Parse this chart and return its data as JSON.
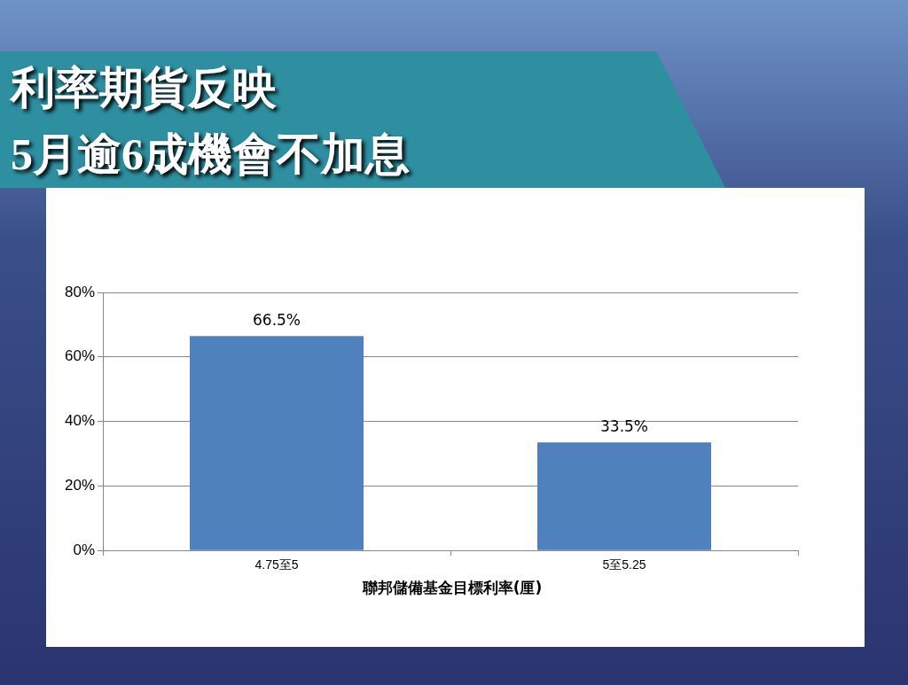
{
  "chart_data": {
    "type": "bar",
    "title": "利率期貨反映\n5月逾6成機會不加息",
    "xlabel": "聯邦儲備基金目標利率(厘)",
    "categories": [
      "4.75至5",
      "5至5.25"
    ],
    "values": [
      66.5,
      33.5
    ],
    "color": "#4f81bd",
    "value_labels": [
      "66.5%",
      "33.5%"
    ],
    "ylim": [
      0,
      80
    ],
    "yticks": [
      {
        "value": 0,
        "label": "0%"
      },
      {
        "value": 20,
        "label": "20%"
      },
      {
        "value": 40,
        "label": "40%"
      },
      {
        "value": 60,
        "label": "60%"
      },
      {
        "value": 80,
        "label": "80%"
      }
    ],
    "grid": "y",
    "legend": false
  }
}
